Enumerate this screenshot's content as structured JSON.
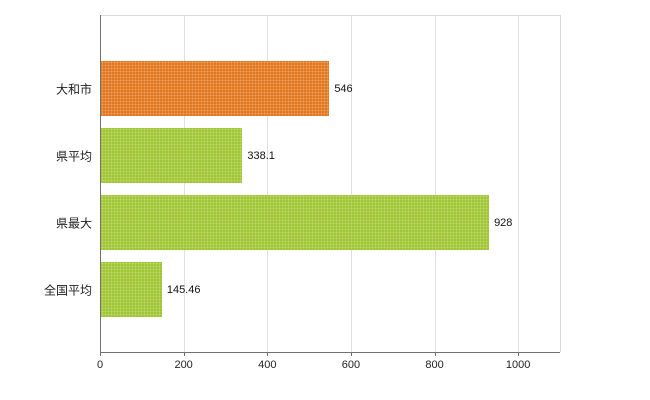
{
  "chart_data": {
    "type": "bar",
    "orientation": "horizontal",
    "title": "",
    "xlabel": "",
    "ylabel": "",
    "categories": [
      "大和市",
      "県平均",
      "県最大",
      "全国平均"
    ],
    "values": [
      546,
      338.1,
      928,
      145.46
    ],
    "value_labels": [
      "546",
      "338.1",
      "928",
      "145.46"
    ],
    "bar_colors": [
      "#e2771f",
      "#a0c633",
      "#a0c633",
      "#a0c633"
    ],
    "xlim": [
      0,
      1100
    ],
    "x_ticks": [
      0,
      200,
      400,
      600,
      800,
      1000
    ],
    "grid": true,
    "legend": "none"
  },
  "colors": {
    "axis": "#707070",
    "grid": "#e0e0e0",
    "plot_border": "#d9d9d9",
    "text": "#222222"
  }
}
